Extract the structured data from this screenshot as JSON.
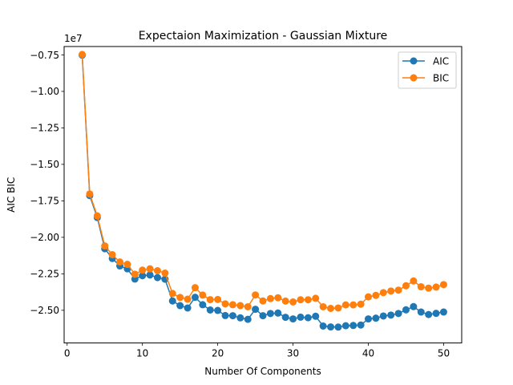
{
  "chart_data": {
    "type": "line",
    "title": "Expectaion Maximization - Gaussian Mixture",
    "xlabel": "Number Of Components",
    "ylabel": "AIC BIC",
    "y_offset_label": "1e7",
    "xlim": [
      -0.4,
      52.4
    ],
    "ylim": [
      -2.724,
      -0.6925
    ],
    "x_ticks": [
      0,
      10,
      20,
      30,
      40,
      50
    ],
    "x_tick_labels": [
      "0",
      "10",
      "20",
      "30",
      "40",
      "50"
    ],
    "y_ticks": [
      -0.75,
      -1.0,
      -1.25,
      -1.5,
      -1.75,
      -2.0,
      -2.25,
      -2.5
    ],
    "y_tick_labels": [
      "−0.75",
      "−1.00",
      "−1.25",
      "−1.50",
      "−1.75",
      "−2.00",
      "−2.25",
      "−2.50"
    ],
    "grid": false,
    "legend_position": "top-right",
    "x": [
      2,
      3,
      4,
      5,
      6,
      7,
      8,
      9,
      10,
      11,
      12,
      13,
      14,
      15,
      16,
      17,
      18,
      19,
      20,
      21,
      22,
      23,
      24,
      25,
      26,
      27,
      28,
      29,
      30,
      31,
      32,
      33,
      34,
      35,
      36,
      37,
      38,
      39,
      40,
      41,
      42,
      43,
      44,
      45,
      46,
      47,
      48,
      49,
      50
    ],
    "series": [
      {
        "name": "AIC",
        "color": "#1f77b4",
        "values": [
          -0.752,
          -1.714,
          -1.864,
          -2.078,
          -2.145,
          -2.196,
          -2.216,
          -2.286,
          -2.263,
          -2.258,
          -2.276,
          -2.287,
          -2.436,
          -2.468,
          -2.484,
          -2.411,
          -2.462,
          -2.498,
          -2.501,
          -2.536,
          -2.537,
          -2.552,
          -2.562,
          -2.493,
          -2.537,
          -2.522,
          -2.519,
          -2.548,
          -2.559,
          -2.547,
          -2.551,
          -2.541,
          -2.608,
          -2.614,
          -2.615,
          -2.606,
          -2.604,
          -2.601,
          -2.559,
          -2.554,
          -2.539,
          -2.533,
          -2.522,
          -2.497,
          -2.475,
          -2.512,
          -2.529,
          -2.521,
          -2.512
        ]
      },
      {
        "name": "BIC",
        "color": "#ff7f0e",
        "values": [
          -0.747,
          -1.703,
          -1.853,
          -2.059,
          -2.119,
          -2.169,
          -2.185,
          -2.253,
          -2.225,
          -2.216,
          -2.229,
          -2.245,
          -2.385,
          -2.412,
          -2.424,
          -2.345,
          -2.396,
          -2.427,
          -2.426,
          -2.456,
          -2.462,
          -2.468,
          -2.476,
          -2.395,
          -2.436,
          -2.42,
          -2.414,
          -2.437,
          -2.443,
          -2.428,
          -2.428,
          -2.418,
          -2.476,
          -2.487,
          -2.484,
          -2.463,
          -2.463,
          -2.458,
          -2.408,
          -2.398,
          -2.379,
          -2.368,
          -2.362,
          -2.332,
          -2.299,
          -2.339,
          -2.348,
          -2.341,
          -2.324
        ]
      }
    ]
  }
}
